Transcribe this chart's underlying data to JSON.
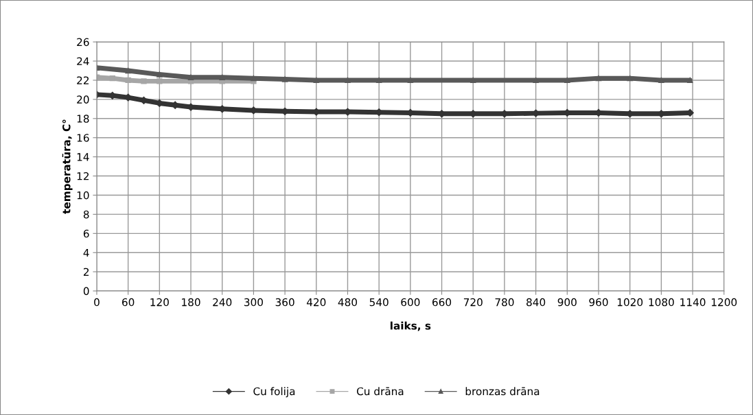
{
  "chart_data": {
    "type": "line",
    "xlabel": "laiks, s",
    "ylabel": "temperatūra, C°",
    "xlim": [
      0,
      1200
    ],
    "xticks": [
      0,
      60,
      120,
      180,
      240,
      300,
      360,
      420,
      480,
      540,
      600,
      660,
      720,
      780,
      840,
      900,
      960,
      1020,
      1080,
      1140,
      1200
    ],
    "ylim": [
      0,
      26
    ],
    "yticks": [
      0,
      2,
      4,
      6,
      8,
      10,
      12,
      14,
      16,
      18,
      20,
      22,
      24,
      26
    ],
    "grid": true,
    "legend": "bottom",
    "series": [
      {
        "name": "Cu folija",
        "color": "#333333",
        "marker": "diamond",
        "x": [
          0,
          30,
          60,
          90,
          120,
          150,
          180,
          240,
          300,
          360,
          420,
          480,
          540,
          600,
          660,
          720,
          780,
          840,
          900,
          960,
          1020,
          1080,
          1135
        ],
        "values": [
          20.5,
          20.4,
          20.2,
          19.9,
          19.6,
          19.4,
          19.2,
          19.0,
          18.85,
          18.75,
          18.7,
          18.7,
          18.65,
          18.6,
          18.5,
          18.5,
          18.5,
          18.55,
          18.6,
          18.6,
          18.5,
          18.5,
          18.6
        ]
      },
      {
        "name": "Cu drāna",
        "color": "#a6a6a6",
        "marker": "square",
        "x": [
          0,
          30,
          60,
          90,
          120,
          180,
          240,
          300
        ],
        "values": [
          22.3,
          22.2,
          22.0,
          21.9,
          21.9,
          21.9,
          21.9,
          21.9
        ]
      },
      {
        "name": "bronzas drāna",
        "color": "#595959",
        "marker": "triangle",
        "x": [
          0,
          60,
          120,
          180,
          240,
          300,
          360,
          420,
          480,
          540,
          600,
          720,
          840,
          900,
          960,
          1020,
          1080,
          1135
        ],
        "values": [
          23.3,
          23.0,
          22.6,
          22.3,
          22.3,
          22.2,
          22.1,
          22.0,
          22.0,
          22.0,
          22.0,
          22.0,
          22.0,
          22.0,
          22.2,
          22.2,
          22.0,
          22.0
        ]
      }
    ]
  }
}
